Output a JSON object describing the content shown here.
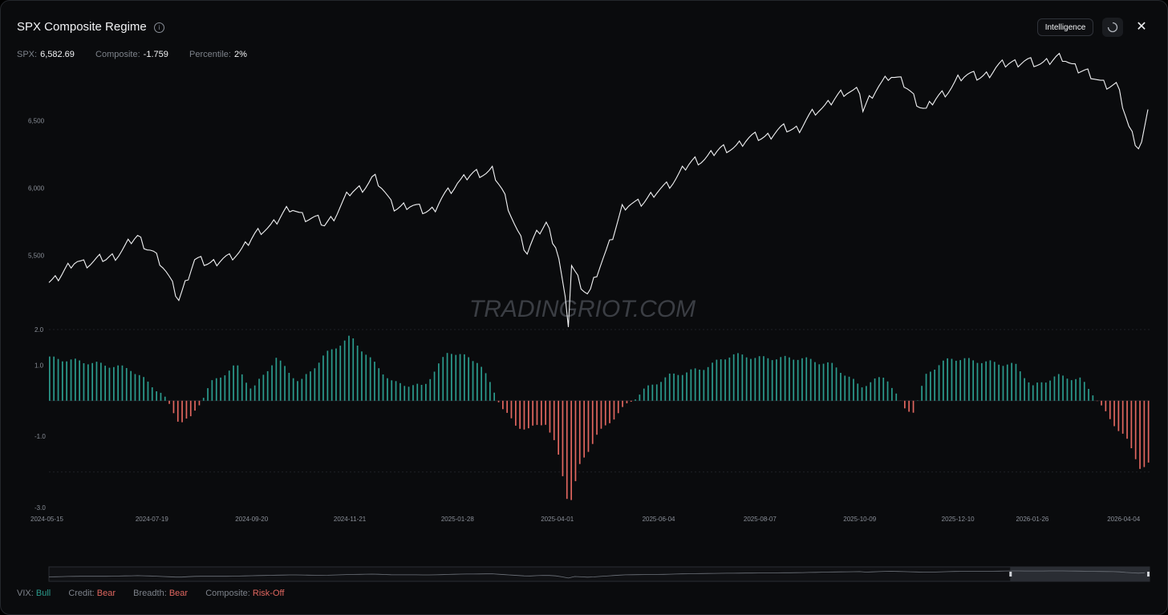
{
  "header": {
    "title": "SPX Composite Regime",
    "info_icon": "info-icon",
    "intelligence_label": "Intelligence",
    "refresh_icon": "refresh-icon",
    "close_icon": "close-icon",
    "close_glyph": "✕"
  },
  "stats": {
    "spx_label": "SPX:",
    "spx_value": "6,582.69",
    "composite_label": "Composite:",
    "composite_value": "-1.759",
    "percentile_label": "Percentile:",
    "percentile_value": "2%"
  },
  "watermark": "TRADINGRIOT.COM",
  "colors": {
    "bull": "#2b9b8d",
    "bear": "#e0665f",
    "line": "#f2f3f5",
    "background": "#0a0b0d"
  },
  "legend": {
    "vix_label": "VIX:",
    "vix_value": "Bull",
    "credit_label": "Credit:",
    "credit_value": "Bear",
    "breadth_label": "Breadth:",
    "breadth_value": "Bear",
    "composite_label": "Composite:",
    "composite_value": "Risk-Off"
  },
  "chart_data": [
    {
      "type": "line",
      "name": "SPX",
      "y_ticks": [
        "5,500",
        "6,000",
        "6,500"
      ],
      "y_tick_values": [
        5500,
        6000,
        6500
      ],
      "ylim": [
        4950,
        6900
      ],
      "x": [
        "2024-05-15",
        "2024-06-01",
        "2024-06-20",
        "2024-07-10",
        "2024-07-19",
        "2024-08-05",
        "2024-08-15",
        "2024-09-06",
        "2024-09-20",
        "2024-10-15",
        "2024-11-05",
        "2024-11-21",
        "2024-12-06",
        "2024-12-18",
        "2025-01-13",
        "2025-01-28",
        "2025-02-19",
        "2025-03-13",
        "2025-03-25",
        "2025-04-01",
        "2025-04-08",
        "2025-04-09",
        "2025-04-21",
        "2025-05-12",
        "2025-06-04",
        "2025-06-27",
        "2025-07-20",
        "2025-08-07",
        "2025-09-01",
        "2025-09-22",
        "2025-10-09",
        "2025-10-10",
        "2025-10-28",
        "2025-11-20",
        "2025-12-10",
        "2025-12-31",
        "2026-01-12",
        "2026-01-26",
        "2026-02-15",
        "2026-03-05",
        "2026-03-20",
        "2026-03-28",
        "2026-04-04",
        "2026-04-10"
      ],
      "y": [
        5300,
        5450,
        5460,
        5630,
        5550,
        5190,
        5450,
        5470,
        5620,
        5850,
        5720,
        5950,
        6080,
        5870,
        5840,
        6050,
        6140,
        5520,
        5750,
        5550,
        4980,
        5450,
        5200,
        5840,
        5970,
        6200,
        6310,
        6380,
        6460,
        6660,
        6740,
        6570,
        6860,
        6580,
        6810,
        6850,
        6950,
        6920,
        6960,
        6820,
        6750,
        6450,
        6300,
        6582.69
      ]
    },
    {
      "type": "bar",
      "name": "Composite",
      "y_ticks": [
        "2.0",
        "1.0",
        "-1.0",
        "-3.0"
      ],
      "y_tick_values": [
        2.0,
        1.0,
        -1.0,
        -3.0
      ],
      "ylim": [
        -3.0,
        2.0
      ],
      "x_ticks": [
        "2024-05-15",
        "2024-07-19",
        "2024-09-20",
        "2024-11-21",
        "2025-01-28",
        "2025-04-01",
        "2025-06-04",
        "2025-08-07",
        "2025-10-09",
        "2025-12-10",
        "2026-01-26",
        "2026-04-04"
      ],
      "x": [
        "2024-05-15",
        "2024-06-05",
        "2024-07-05",
        "2024-07-25",
        "2024-08-05",
        "2024-08-12",
        "2024-08-25",
        "2024-09-10",
        "2024-09-20",
        "2024-10-05",
        "2024-10-20",
        "2024-11-05",
        "2024-11-21",
        "2024-12-05",
        "2024-12-18",
        "2025-01-06",
        "2025-01-22",
        "2025-02-10",
        "2025-02-25",
        "2025-03-05",
        "2025-03-14",
        "2025-03-24",
        "2025-03-31",
        "2025-04-05",
        "2025-04-08",
        "2025-04-15",
        "2025-04-25",
        "2025-05-10",
        "2025-05-25",
        "2025-06-10",
        "2025-07-01",
        "2025-07-20",
        "2025-08-07",
        "2025-09-01",
        "2025-09-22",
        "2025-10-09",
        "2025-10-25",
        "2025-11-05",
        "2025-11-12",
        "2025-11-20",
        "2025-12-05",
        "2025-12-25",
        "2026-01-15",
        "2026-01-26",
        "2026-02-10",
        "2026-02-25",
        "2026-03-05",
        "2026-03-15",
        "2026-03-25",
        "2026-04-04",
        "2026-04-10"
      ],
      "values": [
        1.2,
        1.1,
        0.9,
        0.2,
        -0.6,
        -0.5,
        0.5,
        1.0,
        0.3,
        1.2,
        0.5,
        1.3,
        1.8,
        1.1,
        0.5,
        0.4,
        1.4,
        1.1,
        -0.2,
        -0.7,
        -0.8,
        -0.6,
        -1.3,
        -2.3,
        -3.0,
        -1.8,
        -1.0,
        -0.3,
        0.3,
        0.7,
        0.9,
        1.3,
        1.2,
        1.2,
        1.0,
        0.4,
        0.7,
        -0.2,
        -0.3,
        0.8,
        1.2,
        1.1,
        1.0,
        0.4,
        0.7,
        0.6,
        0.2,
        -0.5,
        -1.0,
        -1.9,
        -1.759
      ]
    }
  ]
}
